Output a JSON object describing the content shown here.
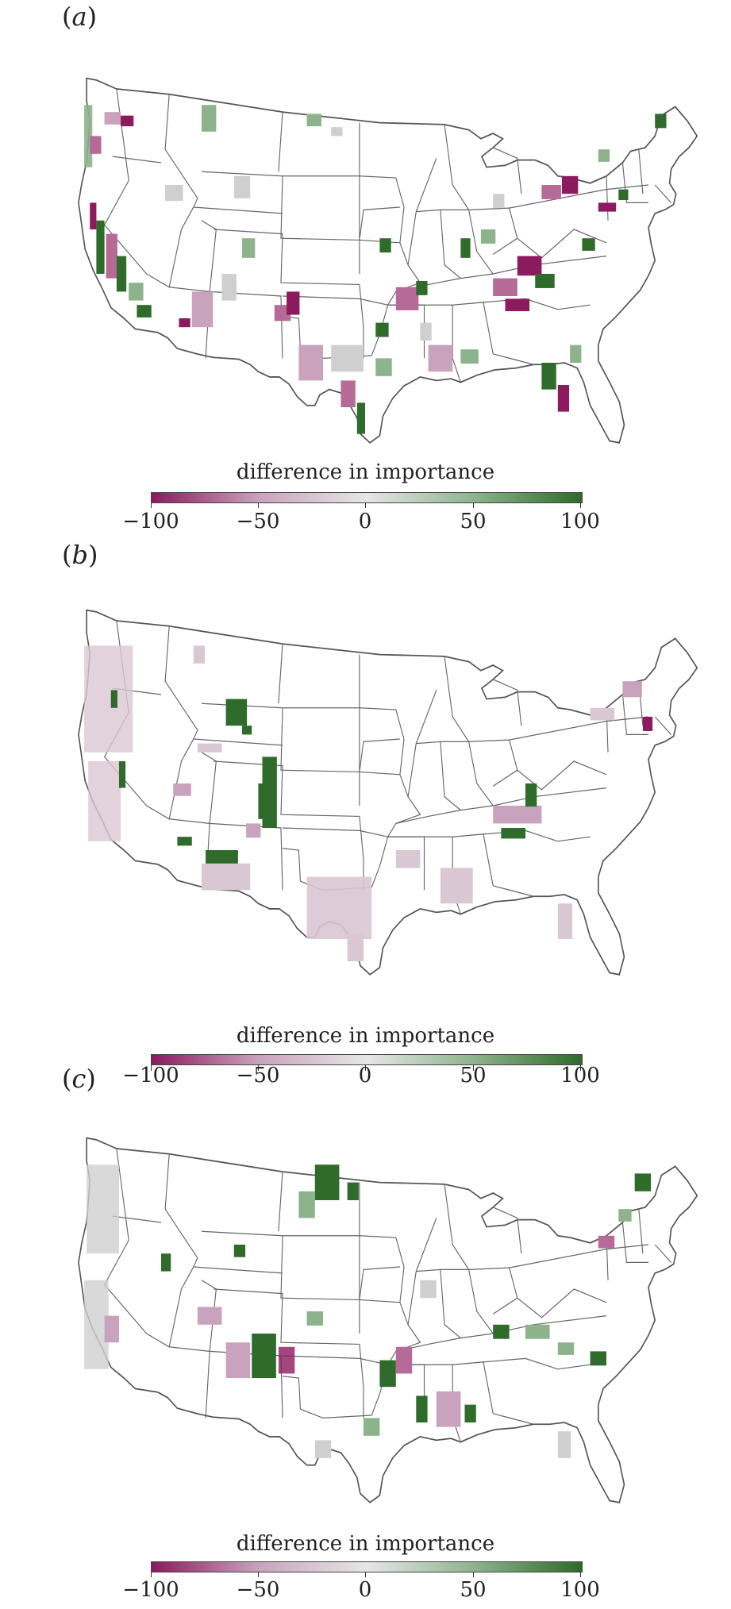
{
  "figure": {
    "colorbar": {
      "title": "difference in importance",
      "ticks": [
        "−100",
        "−50",
        "0",
        "50",
        "100"
      ],
      "colors": {
        "negative": "#8b1a5e",
        "mid_neg": "#c9a3bd",
        "zero": "#e6e6e6",
        "mid_pos": "#8db38d",
        "positive": "#2f6b2a"
      }
    },
    "panels": [
      {
        "letter": "a",
        "open": "(",
        "close": ")"
      },
      {
        "letter": "b",
        "open": "(",
        "close": ")"
      },
      {
        "letter": "c",
        "open": "(",
        "close": ")"
      }
    ],
    "colors": {
      "border": "#555555",
      "fill": "#ffffff",
      "grey": "#cfcfcf",
      "pink": "#c9a3bd",
      "magenta": "#8b1a5e",
      "lightgreen": "#8db38d",
      "green": "#2f6b2a"
    }
  }
}
